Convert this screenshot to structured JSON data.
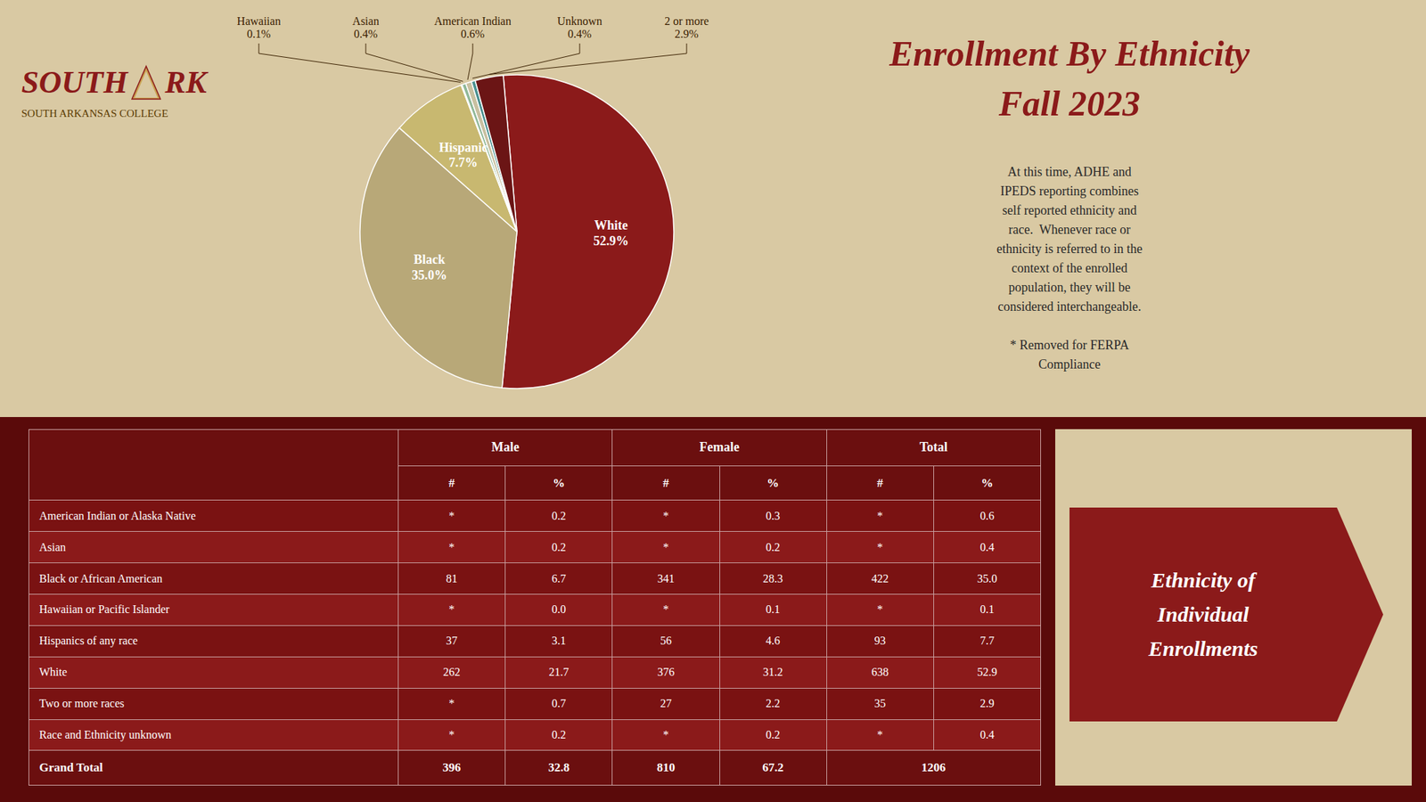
{
  "chart_data": {
    "type": "pie",
    "title": "Enrollment By Ethnicity",
    "subtitle": "Fall 2023",
    "categories": [
      "White",
      "Black",
      "Hispanic",
      "Hawaiian",
      "Asian",
      "American Indian",
      "Unknown",
      "2 or more"
    ],
    "values": [
      52.9,
      35.0,
      7.7,
      0.1,
      0.4,
      0.6,
      0.4,
      2.9
    ],
    "value_labels": [
      "52.9%",
      "35.0%",
      "7.7%",
      "0.1%",
      "0.4%",
      "0.6%",
      "0.4%",
      "2.9%"
    ],
    "colors": [
      "#8b1a1a",
      "#b8a878",
      "#c8b870",
      "#2e8b8b",
      "#90b898",
      "#c8c0a0",
      "#4a9090",
      "#6b1515"
    ],
    "data_labels": true,
    "annotations": [
      "SOUTH",
      "RK",
      "SOUTH ARKANSAS COLLEGE",
      "At this time, ADHE and\nIPEDS reporting combines\nself reported ethnicity and\nrace.  Whenever race or\nethnicity is referred to in the\ncontext of the enrolled\npopulation, they will be\nconsidered interchangeable.\n\n* Removed for FERPA\nCompliance",
      "Ethnicity of\nIndividual\nEnrollments"
    ],
    "table": {
      "header": [
        "Male",
        "Female",
        "Total"
      ],
      "subheader": [
        "#",
        "%",
        "#",
        "%",
        "#",
        "%"
      ],
      "rows": [
        [
          "American Indian or Alaska Native",
          "*",
          "0.2",
          "*",
          "0.3",
          "*",
          "0.6"
        ],
        [
          "Asian",
          "*",
          "0.2",
          "*",
          "0.2",
          "*",
          "0.4"
        ],
        [
          "Black or African American",
          "81",
          "6.7",
          "341",
          "28.3",
          "422",
          "35.0"
        ],
        [
          "Hawaiian or Pacific Islander",
          "*",
          "0.0",
          "*",
          "0.1",
          "*",
          "0.1"
        ],
        [
          "Hispanics of any race",
          "37",
          "3.1",
          "56",
          "4.6",
          "93",
          "7.7"
        ],
        [
          "White",
          "262",
          "21.7",
          "376",
          "31.2",
          "638",
          "52.9"
        ],
        [
          "Two or more races",
          "*",
          "0.7",
          "27",
          "2.2",
          "35",
          "2.9"
        ],
        [
          "Race and Ethnicity unknown",
          "*",
          "0.2",
          "*",
          "0.2",
          "*",
          "0.4"
        ]
      ],
      "footer": [
        "Grand Total",
        "396",
        "32.8",
        "810",
        "67.2",
        "1206"
      ]
    }
  }
}
